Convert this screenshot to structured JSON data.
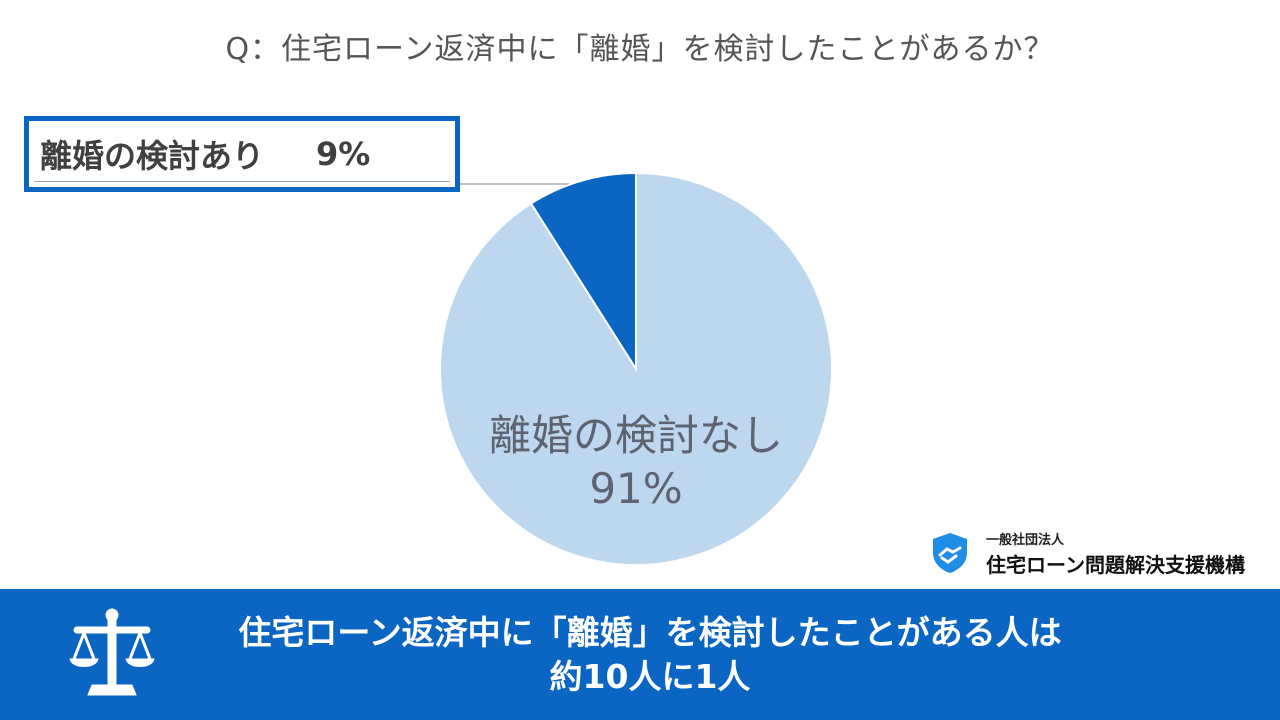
{
  "question": "Q：住宅ローン返済中に「離婚」を検討したことがあるか？",
  "callout": {
    "label": "離婚の検討あり",
    "value": "9%"
  },
  "pie_label": {
    "name": "離婚の検討なし",
    "value": "91%"
  },
  "org": {
    "sub": "一般社団法人",
    "name": "住宅ローン問題解決支援機構",
    "logo_icon": "shield-handshake-icon"
  },
  "banner": {
    "line1": "住宅ローン返済中に「離婚」を検討したことがある人は",
    "line2": "約10人に1人",
    "icon": "scales-icon"
  },
  "colors": {
    "accent": "#0a66c2",
    "light_slice": "#bdd7ee",
    "dark_slice": "#0a66c2"
  },
  "chart_data": {
    "type": "pie",
    "title": "Q：住宅ローン返済中に「離婚」を検討したことがあるか？",
    "categories": [
      "離婚の検討あり",
      "離婚の検討なし"
    ],
    "values": [
      9,
      91
    ],
    "colors": [
      "#0a66c2",
      "#bdd7ee"
    ]
  }
}
